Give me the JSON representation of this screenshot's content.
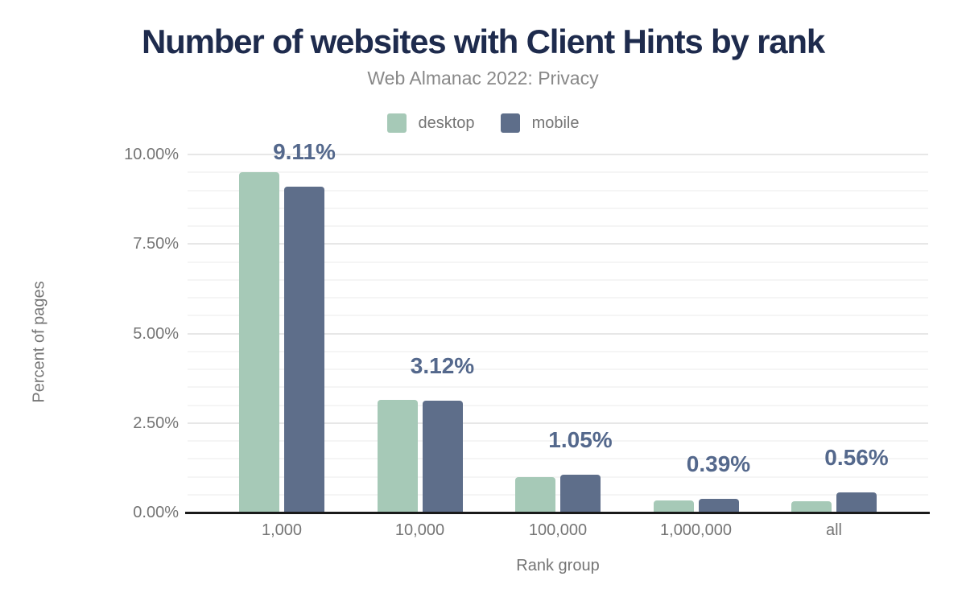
{
  "header": {
    "title": "Number of websites with Client Hints by rank",
    "subtitle": "Web Almanac 2022: Privacy"
  },
  "legend": {
    "items": [
      {
        "label": "desktop",
        "color": "#a6c9b7"
      },
      {
        "label": "mobile",
        "color": "#5e6e8a"
      }
    ]
  },
  "chart_data": {
    "type": "bar",
    "title": "Number of websites with Client Hints by rank",
    "subtitle": "Web Almanac 2022: Privacy",
    "categories": [
      "1,000",
      "10,000",
      "100,000",
      "1,000,000",
      "all"
    ],
    "series": [
      {
        "name": "desktop",
        "color": "#a6c9b7",
        "values": [
          9.5,
          3.14,
          1.0,
          0.34,
          0.31
        ]
      },
      {
        "name": "mobile",
        "color": "#5e6e8a",
        "values": [
          9.11,
          3.12,
          1.05,
          0.39,
          0.56
        ]
      }
    ],
    "bar_labels": {
      "labeled_series": "mobile",
      "values": [
        "9.11%",
        "3.12%",
        "1.05%",
        "0.39%",
        "0.56%"
      ]
    },
    "xlabel": "Rank group",
    "ylabel": "Percent of pages",
    "ylim": [
      0,
      10
    ],
    "yticks": [
      {
        "value": 0,
        "label": "0.00%"
      },
      {
        "value": 2.5,
        "label": "2.50%"
      },
      {
        "value": 5,
        "label": "5.00%"
      },
      {
        "value": 7.5,
        "label": "7.50%"
      },
      {
        "value": 10,
        "label": "10.00%"
      }
    ],
    "minor_gridline_step": 0.5,
    "grid": true,
    "legend_position": "top",
    "colors": {
      "title": "#1e2b4d",
      "subtitle": "#888888",
      "axis_text": "#757575",
      "data_label": "#54688c",
      "major_gridline": "#e7e7e7",
      "minor_gridline": "#f5f5f5",
      "axis_line": "#1a1a1a",
      "background": "#ffffff"
    }
  }
}
